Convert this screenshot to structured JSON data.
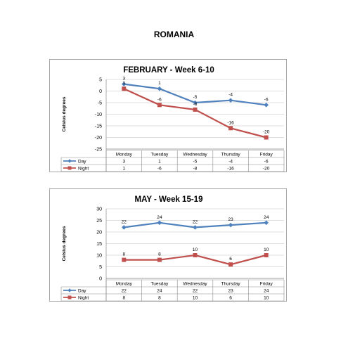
{
  "page": {
    "title": "ROMANIA"
  },
  "colors": {
    "day": "#4F81BD",
    "night": "#C0504D",
    "grid": "#bfbfbf",
    "axis": "#8c8c8c"
  },
  "chart_data": [
    {
      "type": "line",
      "title": "FEBRUARY - Week 6-10",
      "ylabel": "Celsius degrees",
      "xlabel": "",
      "categories": [
        "Monday",
        "Tuesday",
        "Wednesday",
        "Thursday",
        "Friday"
      ],
      "series": [
        {
          "name": "Day",
          "values": [
            3,
            1,
            -5,
            -4,
            -6
          ],
          "marker": "diamond"
        },
        {
          "name": "Night",
          "values": [
            1,
            -6,
            -8,
            -16,
            -20
          ],
          "marker": "square"
        }
      ],
      "ylim": [
        -25,
        5
      ],
      "yticks": [
        "5",
        "0",
        "-5",
        "-10",
        "-15",
        "-20",
        "-25"
      ],
      "grid": true,
      "legend": "data-table"
    },
    {
      "type": "line",
      "title": "MAY - Week 15-19",
      "ylabel": "Celsius degrees",
      "xlabel": "",
      "categories": [
        "Monday",
        "Tuesday",
        "Wednesday",
        "Thursday",
        "Friday"
      ],
      "series": [
        {
          "name": "Day",
          "values": [
            22,
            24,
            22,
            23,
            24
          ],
          "marker": "diamond"
        },
        {
          "name": "Night",
          "values": [
            8,
            8,
            10,
            6,
            10
          ],
          "marker": "square"
        }
      ],
      "ylim": [
        0,
        30
      ],
      "yticks": [
        "30",
        "25",
        "20",
        "15",
        "10",
        "5",
        "0"
      ],
      "grid": true,
      "legend": "data-table"
    }
  ]
}
